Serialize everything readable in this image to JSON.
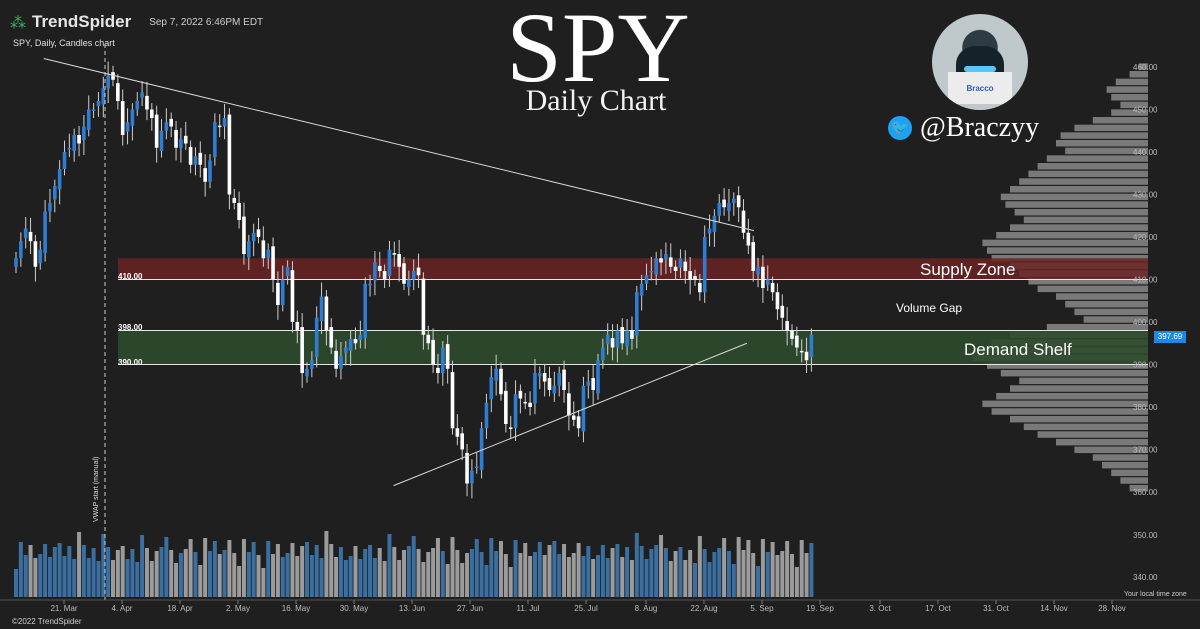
{
  "header": {
    "brand": "TrendSpider",
    "date": "Sep 7, 2022 6:46PM EDT",
    "symbol_label": "SPY, Daily, Candles chart"
  },
  "overlay": {
    "title": "SPY",
    "subtitle": "Daily Chart",
    "handle": "@Braczyy",
    "avatar_text": "Bracco"
  },
  "zones": {
    "supply": "Supply Zone",
    "gap": "Volume Gap",
    "demand": "Demand Shelf",
    "level_410": "410.00",
    "level_398": "398.00",
    "level_390": "390.00"
  },
  "footer": {
    "timezone": "Your local time zone",
    "copyright": "©2022 TrendSpider",
    "vol_note": "VWAP start (manual)"
  },
  "colors": {
    "background": "#1f1f1f",
    "up": "#2f7dd1",
    "down": "#ffffff",
    "supply": "#6b2323",
    "demand": "#2e4a2e",
    "volume_profile": "#8a8a8a",
    "price_tag": "#1e88e5"
  },
  "chart_data": {
    "type": "candlestick",
    "price_axis": {
      "min": 360,
      "max": 460,
      "ticks": [
        "460.00",
        "450.00",
        "440.00",
        "430.00",
        "420.00",
        "410.00",
        "400.00",
        "390.00",
        "380.00",
        "370.00",
        "360.00"
      ]
    },
    "volume_axis": {
      "ticks": [
        "350.00",
        "340.00"
      ]
    },
    "x_ticks": [
      "21. Mar",
      "4. Apr",
      "18. Apr",
      "2. May",
      "16. May",
      "30. May",
      "13. Jun",
      "27. Jun",
      "11. Jul",
      "25. Jul",
      "8. Aug",
      "22. Aug",
      "5. Sep",
      "19. Sep",
      "3. Oct",
      "17. Oct",
      "31. Oct",
      "14. Nov",
      "28. Nov"
    ],
    "last_price": "397.69",
    "zones": {
      "supply": [
        410,
        415
      ],
      "demand": [
        390,
        398
      ]
    },
    "trendlines": [
      {
        "from": [
          "2022-03-08",
          462
        ],
        "to": [
          "2022-09-29",
          421.5
        ]
      },
      {
        "from": [
          "2022-06-17",
          361.5
        ],
        "to": [
          "2022-09-27",
          395
        ]
      }
    ],
    "closes": [
      415,
      419,
      422,
      419,
      413,
      417,
      426,
      428,
      432,
      436,
      440,
      441,
      444,
      442,
      446,
      450,
      450,
      452,
      455,
      458,
      457,
      452,
      444,
      447,
      450,
      452,
      454,
      450,
      448,
      441,
      445,
      447,
      446,
      441,
      443,
      442,
      437,
      439,
      437,
      433,
      438,
      447,
      446,
      448,
      430,
      428,
      424,
      416,
      419,
      421,
      420,
      415,
      417,
      410,
      404,
      410,
      413,
      400,
      398,
      388,
      389,
      391,
      401,
      406,
      398,
      394,
      389,
      392,
      394,
      396,
      395,
      397,
      409,
      409,
      414,
      412,
      410,
      417,
      416,
      413,
      409,
      410,
      412,
      411,
      397,
      395,
      390,
      388,
      394,
      389,
      375,
      373,
      370,
      362,
      365,
      366,
      375,
      381,
      387,
      389,
      383,
      376,
      375,
      383,
      382,
      381,
      380,
      388,
      388,
      386,
      384,
      385,
      388,
      384,
      378,
      377,
      375,
      385,
      386,
      384,
      391,
      394,
      397,
      394,
      398,
      395,
      398,
      396,
      407,
      409,
      411,
      412,
      415,
      414,
      416,
      413,
      412,
      415,
      412,
      410,
      410,
      407,
      420,
      422,
      425,
      428,
      427,
      428,
      429,
      427,
      421,
      418,
      412,
      413,
      408,
      410,
      407,
      403,
      401,
      398,
      396,
      394,
      393,
      391,
      397
    ]
  }
}
